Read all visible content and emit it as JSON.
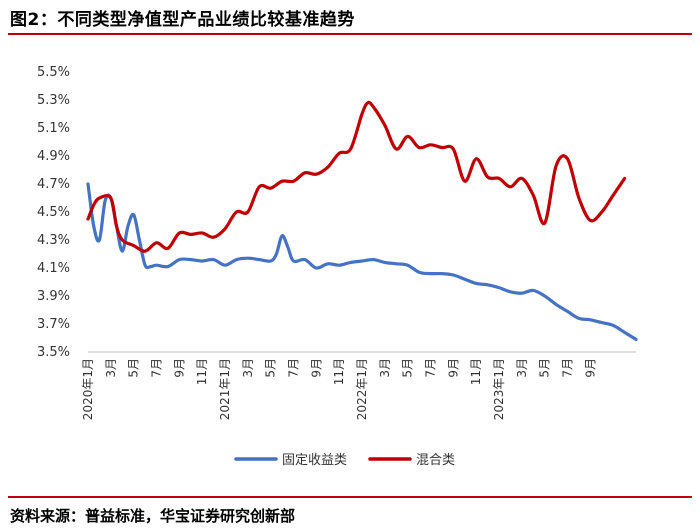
{
  "header": {
    "title": "图2：不同类型净值型产品业绩比较基准趋势"
  },
  "source": {
    "text": "资料来源：普益标准，华宝证券研究创新部"
  },
  "colors": {
    "accent": "#c00000"
  },
  "chart_data": {
    "type": "line",
    "title": "",
    "xlabel": "",
    "ylabel": "",
    "ylim": [
      3.5,
      5.5
    ],
    "ytick_labels": [
      "3.5%",
      "3.7%",
      "3.9%",
      "4.1%",
      "4.3%",
      "4.5%",
      "4.7%",
      "4.9%",
      "5.1%",
      "5.3%",
      "5.5%"
    ],
    "x_tick_labels": [
      "2020年1月",
      "3月",
      "5月",
      "7月",
      "9月",
      "11月",
      "2021年1月",
      "3月",
      "5月",
      "7月",
      "9月",
      "11月",
      "2022年1月",
      "3月",
      "5月",
      "7月",
      "9月",
      "11月",
      "2023年1月",
      "3月",
      "5月",
      "7月",
      "9月"
    ],
    "grid": false,
    "legend_position": "bottom",
    "series": [
      {
        "name": "固定收益类",
        "color": "#4472c4",
        "points": [
          [
            0,
            4.7
          ],
          [
            0.5,
            4.4
          ],
          [
            1,
            4.3
          ],
          [
            1.5,
            4.58
          ],
          [
            2,
            4.6
          ],
          [
            2.5,
            4.4
          ],
          [
            3,
            4.22
          ],
          [
            3.5,
            4.4
          ],
          [
            4,
            4.48
          ],
          [
            4.5,
            4.3
          ],
          [
            5,
            4.12
          ],
          [
            5.5,
            4.11
          ],
          [
            6,
            4.12
          ],
          [
            7,
            4.11
          ],
          [
            8,
            4.16
          ],
          [
            9,
            4.16
          ],
          [
            10,
            4.15
          ],
          [
            11,
            4.16
          ],
          [
            12,
            4.12
          ],
          [
            13,
            4.16
          ],
          [
            14,
            4.17
          ],
          [
            15,
            4.16
          ],
          [
            16,
            4.15
          ],
          [
            16.5,
            4.2
          ],
          [
            17,
            4.33
          ],
          [
            17.5,
            4.25
          ],
          [
            18,
            4.15
          ],
          [
            19,
            4.16
          ],
          [
            20,
            4.1
          ],
          [
            21,
            4.13
          ],
          [
            22,
            4.12
          ],
          [
            23,
            4.14
          ],
          [
            24,
            4.15
          ],
          [
            25,
            4.16
          ],
          [
            26,
            4.14
          ],
          [
            27,
            4.13
          ],
          [
            28,
            4.12
          ],
          [
            29,
            4.07
          ],
          [
            30,
            4.06
          ],
          [
            31,
            4.06
          ],
          [
            32,
            4.05
          ],
          [
            33,
            4.02
          ],
          [
            34,
            3.99
          ],
          [
            35,
            3.98
          ],
          [
            36,
            3.96
          ],
          [
            37,
            3.93
          ],
          [
            38,
            3.92
          ],
          [
            39,
            3.94
          ],
          [
            40,
            3.9
          ],
          [
            41,
            3.84
          ],
          [
            42,
            3.79
          ],
          [
            43,
            3.74
          ],
          [
            44,
            3.73
          ],
          [
            45,
            3.71
          ],
          [
            46,
            3.69
          ],
          [
            47,
            3.64
          ],
          [
            48,
            3.59
          ]
        ]
      },
      {
        "name": "混合类",
        "color": "#c00000",
        "points": [
          [
            0,
            4.45
          ],
          [
            0.5,
            4.55
          ],
          [
            1,
            4.6
          ],
          [
            2,
            4.6
          ],
          [
            2.5,
            4.4
          ],
          [
            3,
            4.3
          ],
          [
            4,
            4.26
          ],
          [
            5,
            4.22
          ],
          [
            6,
            4.28
          ],
          [
            7,
            4.24
          ],
          [
            8,
            4.35
          ],
          [
            9,
            4.34
          ],
          [
            10,
            4.35
          ],
          [
            11,
            4.32
          ],
          [
            12,
            4.38
          ],
          [
            13,
            4.5
          ],
          [
            14,
            4.5
          ],
          [
            15,
            4.68
          ],
          [
            16,
            4.67
          ],
          [
            17,
            4.72
          ],
          [
            18,
            4.72
          ],
          [
            19,
            4.78
          ],
          [
            20,
            4.77
          ],
          [
            21,
            4.82
          ],
          [
            22,
            4.92
          ],
          [
            23,
            4.95
          ],
          [
            24,
            5.2
          ],
          [
            24.5,
            5.28
          ],
          [
            25,
            5.25
          ],
          [
            26,
            5.12
          ],
          [
            27,
            4.95
          ],
          [
            28,
            5.04
          ],
          [
            29,
            4.96
          ],
          [
            30,
            4.98
          ],
          [
            31,
            4.96
          ],
          [
            32,
            4.95
          ],
          [
            33,
            4.72
          ],
          [
            34,
            4.88
          ],
          [
            35,
            4.75
          ],
          [
            36,
            4.74
          ],
          [
            37,
            4.68
          ],
          [
            38,
            4.74
          ],
          [
            39,
            4.62
          ],
          [
            40,
            4.42
          ],
          [
            41,
            4.83
          ],
          [
            42,
            4.88
          ],
          [
            43,
            4.6
          ],
          [
            44,
            4.44
          ],
          [
            45,
            4.5
          ],
          [
            46,
            4.62
          ],
          [
            47,
            4.74
          ]
        ]
      }
    ]
  }
}
